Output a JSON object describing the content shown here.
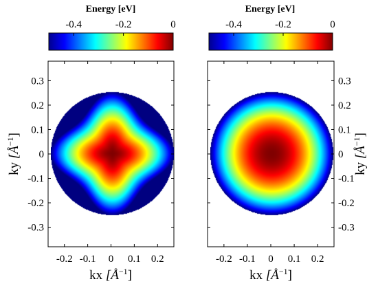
{
  "chart_data": [
    {
      "type": "heatmap",
      "panel": "left",
      "title": "",
      "colorbar": {
        "label": "Energy [eV]",
        "range": [
          -0.5,
          0
        ],
        "ticks": [
          -0.4,
          -0.2,
          0
        ],
        "tick_labels": [
          "-0.4",
          "-0.2",
          "0"
        ],
        "colormap": "jet",
        "position": "top"
      },
      "xlabel_main": "kx",
      "xlabel_unit": "[Å",
      "xlabel_sup": "−1",
      "xlabel_end": "]",
      "ylabel_main": "ky",
      "ylabel_unit": "[Å",
      "ylabel_sup": "−1",
      "ylabel_end": "]",
      "xlim": [
        -0.27,
        0.27
      ],
      "ylim": [
        -0.38,
        0.38
      ],
      "xticks": [
        -0.2,
        -0.1,
        0,
        0.1,
        0.2
      ],
      "xtick_labels": [
        "-0.2",
        "-0.1",
        "0",
        "0.1",
        "0.2"
      ],
      "yticks": [
        -0.3,
        -0.2,
        -0.1,
        0,
        0.1,
        0.2,
        0.3
      ],
      "ytick_labels": [
        "-0.3",
        "-0.2",
        "-0.1",
        "0",
        "0.1",
        "0.2",
        "0.3"
      ],
      "yaxis_side": "left",
      "disk_radius": 0.26,
      "center_energy": 0,
      "edge_energy": -0.5,
      "anisotropy": "four-lobed",
      "grid": false
    },
    {
      "type": "heatmap",
      "panel": "right",
      "title": "",
      "colorbar": {
        "label": "Energy [eV]",
        "range": [
          -0.5,
          0
        ],
        "ticks": [
          -0.4,
          -0.2,
          0
        ],
        "tick_labels": [
          "-0.4",
          "-0.2",
          "0"
        ],
        "colormap": "jet",
        "position": "top"
      },
      "xlabel_main": "kx",
      "xlabel_unit": "[Å",
      "xlabel_sup": "−1",
      "xlabel_end": "]",
      "ylabel_main": "ky",
      "ylabel_unit": "[Å",
      "ylabel_sup": "−1",
      "ylabel_end": "]",
      "xlim": [
        -0.27,
        0.27
      ],
      "ylim": [
        -0.38,
        0.38
      ],
      "xticks": [
        -0.2,
        -0.1,
        0,
        0.1,
        0.2
      ],
      "xtick_labels": [
        "-0.2",
        "-0.1",
        "0",
        "0.1",
        "0.2"
      ],
      "yticks": [
        -0.3,
        -0.2,
        -0.1,
        0,
        0.1,
        0.2,
        0.3
      ],
      "ytick_labels": [
        "-0.3",
        "-0.2",
        "-0.1",
        "0",
        "0.1",
        "0.2",
        "0.3"
      ],
      "yaxis_side": "right",
      "disk_radius": 0.26,
      "center_energy": 0,
      "edge_energy": -0.5,
      "anisotropy": "isotropic",
      "grid": false
    }
  ]
}
